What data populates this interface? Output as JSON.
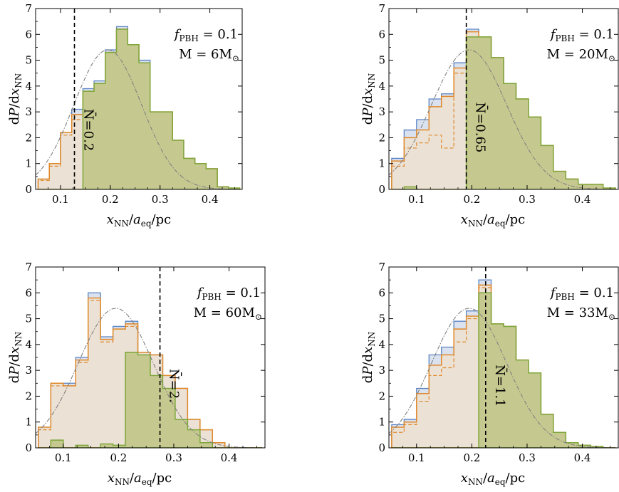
{
  "figure": {
    "panel_layout": "2x2 grid",
    "colors": {
      "blue": "#5b84c4",
      "blue_fill": "#dbe2ef",
      "orange": "#e0892b",
      "orange_fill": "#ebe1d4",
      "green": "#7ea63a",
      "green_fill": "#c6c98f",
      "gaussian": "#808080"
    }
  },
  "chart_data": [
    {
      "type": "histogram",
      "panel": "top-left",
      "xlabel": "x_NN/a_eq/pc",
      "ylabel": "dP/dx_NN",
      "xlim": [
        0.05,
        0.465
      ],
      "ylim": [
        0,
        7
      ],
      "xticks": [
        "0.1",
        "0.2",
        "0.3",
        "0.4"
      ],
      "yticks": [
        "0",
        "1",
        "2",
        "3",
        "4",
        "5",
        "6",
        "7"
      ],
      "annotation": {
        "fpbh_label": "f",
        "fpbh_sub": "PBH",
        "fpbh_value": " = 0.1",
        "mass_label": "M = 6M",
        "mass_sub": "⊙"
      },
      "vline": {
        "x": 0.128,
        "label": "N̄=0.2"
      },
      "bin_edges": [
        0.055,
        0.0775,
        0.1,
        0.1225,
        0.145,
        0.1675,
        0.19,
        0.2125,
        0.235,
        0.2575,
        0.28,
        0.3025,
        0.325,
        0.3475,
        0.37,
        0.3925,
        0.415,
        0.4375,
        0.46
      ],
      "series": [
        {
          "name": "blue",
          "values": [
            0.4,
            1.0,
            2.2,
            3.1,
            3.9,
            4.2,
            5.4,
            6.3,
            5.6,
            5.0,
            3.0,
            3.0,
            1.9,
            1.2,
            1.0,
            0.8,
            0.1,
            0.05
          ]
        },
        {
          "name": "orange",
          "values": [
            0.4,
            1.0,
            2.2,
            2.9,
            3.8,
            4.1,
            5.3,
            6.2,
            5.6,
            4.9,
            3.0,
            3.0,
            1.9,
            1.2,
            1.0,
            0.8,
            0.1,
            0.05
          ]
        },
        {
          "name": "orange-dashed",
          "values": [
            0.35,
            0.9,
            2.1,
            2.7,
            3.6,
            4.0,
            5.2,
            6.1,
            5.5,
            4.9,
            3.0,
            3.0,
            1.9,
            1.2,
            1.0,
            0.8,
            0.1,
            0.05
          ]
        },
        {
          "name": "green",
          "values": [
            0,
            0,
            0,
            0,
            3.8,
            4.1,
            5.3,
            6.2,
            5.6,
            4.9,
            3.0,
            3.0,
            1.9,
            1.2,
            1.0,
            0.8,
            0.1,
            0.05
          ]
        }
      ],
      "gaussian": {
        "mu": 0.195,
        "sigma": 0.068,
        "peak": 5.4
      }
    },
    {
      "type": "histogram",
      "panel": "top-right",
      "xlabel": "x_NN/a_eq/pc",
      "ylabel": "dP/dx_NN",
      "xlim": [
        0.05,
        0.465
      ],
      "ylim": [
        0,
        7
      ],
      "xticks": [
        "0.1",
        "0.2",
        "0.3",
        "0.4"
      ],
      "yticks": [
        "0",
        "1",
        "2",
        "3",
        "4",
        "5",
        "6",
        "7"
      ],
      "annotation": {
        "fpbh_label": "f",
        "fpbh_sub": "PBH",
        "fpbh_value": " = 0.1",
        "mass_label": "M = 20M",
        "mass_sub": "⊙"
      },
      "vline": {
        "x": 0.19,
        "label": "N̄=0.65"
      },
      "bin_edges": [
        0.055,
        0.0775,
        0.1,
        0.1225,
        0.145,
        0.1675,
        0.19,
        0.2125,
        0.235,
        0.2575,
        0.28,
        0.3025,
        0.325,
        0.3475,
        0.37,
        0.3925,
        0.415,
        0.4375,
        0.46
      ],
      "series": [
        {
          "name": "blue",
          "values": [
            1.2,
            2.3,
            2.7,
            3.5,
            3.7,
            4.9,
            6.2,
            5.9,
            5.1,
            4.1,
            3.5,
            2.8,
            1.7,
            0.7,
            0.4,
            0.2,
            0.2,
            0.05
          ]
        },
        {
          "name": "orange",
          "values": [
            1.1,
            2.0,
            2.3,
            3.2,
            3.6,
            4.7,
            6.1,
            5.9,
            5.1,
            4.1,
            3.5,
            2.8,
            1.7,
            0.7,
            0.4,
            0.2,
            0.2,
            0.05
          ]
        },
        {
          "name": "orange-dashed",
          "values": [
            0.9,
            1.6,
            1.8,
            2.1,
            1.6,
            4.5,
            5.9,
            5.9,
            5.1,
            4.1,
            3.5,
            2.8,
            1.7,
            0.7,
            0.4,
            0.2,
            0.2,
            0.05
          ]
        },
        {
          "name": "green",
          "values": [
            0,
            0.1,
            0,
            0,
            0,
            0,
            5.9,
            5.9,
            5.1,
            4.1,
            3.5,
            2.8,
            1.7,
            0.7,
            0.4,
            0.2,
            0.2,
            0.05
          ]
        }
      ],
      "gaussian": {
        "mu": 0.195,
        "sigma": 0.068,
        "peak": 5.4
      }
    },
    {
      "type": "histogram",
      "panel": "bottom-left",
      "xlabel": "x_NN/a_eq/pc",
      "ylabel": "dP/dx_NN",
      "xlim": [
        0.05,
        0.465
      ],
      "ylim": [
        0,
        7
      ],
      "xticks": [
        "0.1",
        "0.2",
        "0.3",
        "0.4"
      ],
      "yticks": [
        "0",
        "1",
        "2",
        "3",
        "4",
        "5",
        "6",
        "7"
      ],
      "annotation": {
        "fpbh_label": "f",
        "fpbh_sub": "PBH",
        "fpbh_value": " = 0.1",
        "mass_label": "M = 60M",
        "mass_sub": "⊙"
      },
      "vline": {
        "x": 0.275,
        "label": "N̄=2."
      },
      "bin_edges": [
        0.055,
        0.0775,
        0.1,
        0.1225,
        0.145,
        0.1675,
        0.19,
        0.2125,
        0.235,
        0.2575,
        0.28,
        0.3025,
        0.325,
        0.3475,
        0.37,
        0.3925,
        0.415,
        0.4375,
        0.46
      ],
      "series": [
        {
          "name": "blue",
          "values": [
            0.8,
            2.5,
            2.5,
            3.5,
            6.0,
            4.3,
            4.7,
            4.9,
            3.7,
            3.6,
            2.8,
            2.3,
            1.1,
            0.7,
            0.2,
            0,
            0,
            0
          ]
        },
        {
          "name": "orange",
          "values": [
            0.8,
            2.5,
            2.4,
            3.4,
            5.8,
            4.2,
            4.6,
            4.8,
            3.7,
            3.6,
            2.8,
            2.3,
            1.1,
            0.7,
            0.2,
            0,
            0,
            0
          ]
        },
        {
          "name": "orange-dashed",
          "values": [
            0.7,
            2.4,
            2.4,
            3.3,
            5.7,
            4.1,
            4.6,
            4.7,
            3.7,
            3.6,
            2.8,
            2.3,
            1.1,
            0.7,
            0.2,
            0,
            0,
            0
          ]
        },
        {
          "name": "green",
          "values": [
            0,
            0.3,
            0,
            0.1,
            0,
            0.15,
            0.1,
            3.7,
            3.6,
            2.8,
            2.3,
            1.1,
            0.7,
            0.2,
            0,
            0,
            0,
            0
          ]
        }
      ],
      "gaussian": {
        "mu": 0.195,
        "sigma": 0.068,
        "peak": 5.4
      }
    },
    {
      "type": "histogram",
      "panel": "bottom-right",
      "xlabel": "x_NN/a_eq/pc",
      "ylabel": "dP/dx_NN",
      "xlim": [
        0.05,
        0.465
      ],
      "ylim": [
        0,
        7
      ],
      "xticks": [
        "0.1",
        "0.2",
        "0.3",
        "0.4"
      ],
      "yticks": [
        "0",
        "1",
        "2",
        "3",
        "4",
        "5",
        "6",
        "7"
      ],
      "annotation": {
        "fpbh_label": "f",
        "fpbh_sub": "PBH",
        "fpbh_value": " = 0.1",
        "mass_label": "M = 33M",
        "mass_sub": "⊙"
      },
      "vline": {
        "x": 0.225,
        "label": "N̄=1.1"
      },
      "bin_edges": [
        0.055,
        0.0775,
        0.1,
        0.1225,
        0.145,
        0.1675,
        0.19,
        0.2125,
        0.235,
        0.2575,
        0.28,
        0.3025,
        0.325,
        0.3475,
        0.37,
        0.3925,
        0.415,
        0.4375,
        0.46
      ],
      "series": [
        {
          "name": "blue",
          "values": [
            0.9,
            1.1,
            2.3,
            3.6,
            3.9,
            4.9,
            5.3,
            6.5,
            4.8,
            4.7,
            3.4,
            2.9,
            1.3,
            0.6,
            0.2,
            0.1,
            0.05,
            0
          ]
        },
        {
          "name": "orange",
          "values": [
            0.8,
            1.0,
            2.1,
            3.2,
            3.6,
            4.6,
            5.1,
            6.3,
            4.8,
            4.7,
            3.4,
            2.9,
            1.3,
            0.6,
            0.2,
            0.1,
            0.05,
            0
          ]
        },
        {
          "name": "orange-dashed",
          "values": [
            0.6,
            0.9,
            1.8,
            2.8,
            3.1,
            4.1,
            5.0,
            6.2,
            4.8,
            4.7,
            3.4,
            2.9,
            1.3,
            0.6,
            0.2,
            0.1,
            0.05,
            0
          ]
        },
        {
          "name": "green",
          "values": [
            0,
            0,
            0,
            0,
            0,
            0,
            0,
            6.0,
            4.8,
            4.7,
            3.4,
            2.9,
            1.3,
            0.6,
            0.2,
            0.1,
            0.05,
            0
          ]
        }
      ],
      "gaussian": {
        "mu": 0.195,
        "sigma": 0.068,
        "peak": 5.4
      }
    }
  ]
}
